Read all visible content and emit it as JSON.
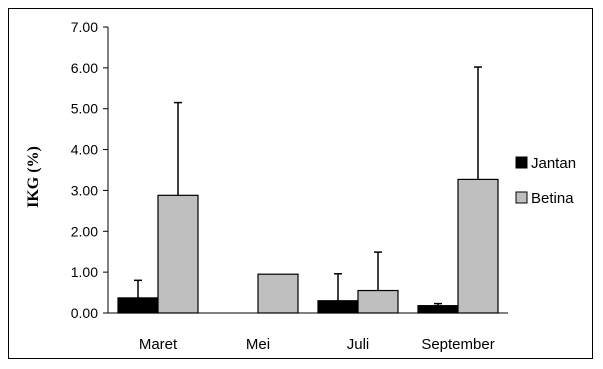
{
  "chart_data": {
    "type": "bar",
    "title": "",
    "xlabel": "",
    "ylabel": "IKG (%)",
    "ylim": [
      0,
      7
    ],
    "yticks": [
      "0.00",
      "1.00",
      "2.00",
      "3.00",
      "4.00",
      "5.00",
      "6.00",
      "7.00"
    ],
    "categories": [
      "Maret",
      "Mei",
      "Juli",
      "September"
    ],
    "series": [
      {
        "name": "Jantan",
        "color": "#000000",
        "values": [
          0.37,
          0.0,
          0.3,
          0.18
        ],
        "errors": [
          0.43,
          0.0,
          0.66,
          0.05
        ]
      },
      {
        "name": "Betina",
        "color": "#bfbfbf",
        "values": [
          2.88,
          0.95,
          0.55,
          3.27
        ],
        "errors": [
          2.27,
          0.0,
          0.94,
          2.75
        ]
      }
    ],
    "grid": false,
    "legend_position": "right"
  }
}
